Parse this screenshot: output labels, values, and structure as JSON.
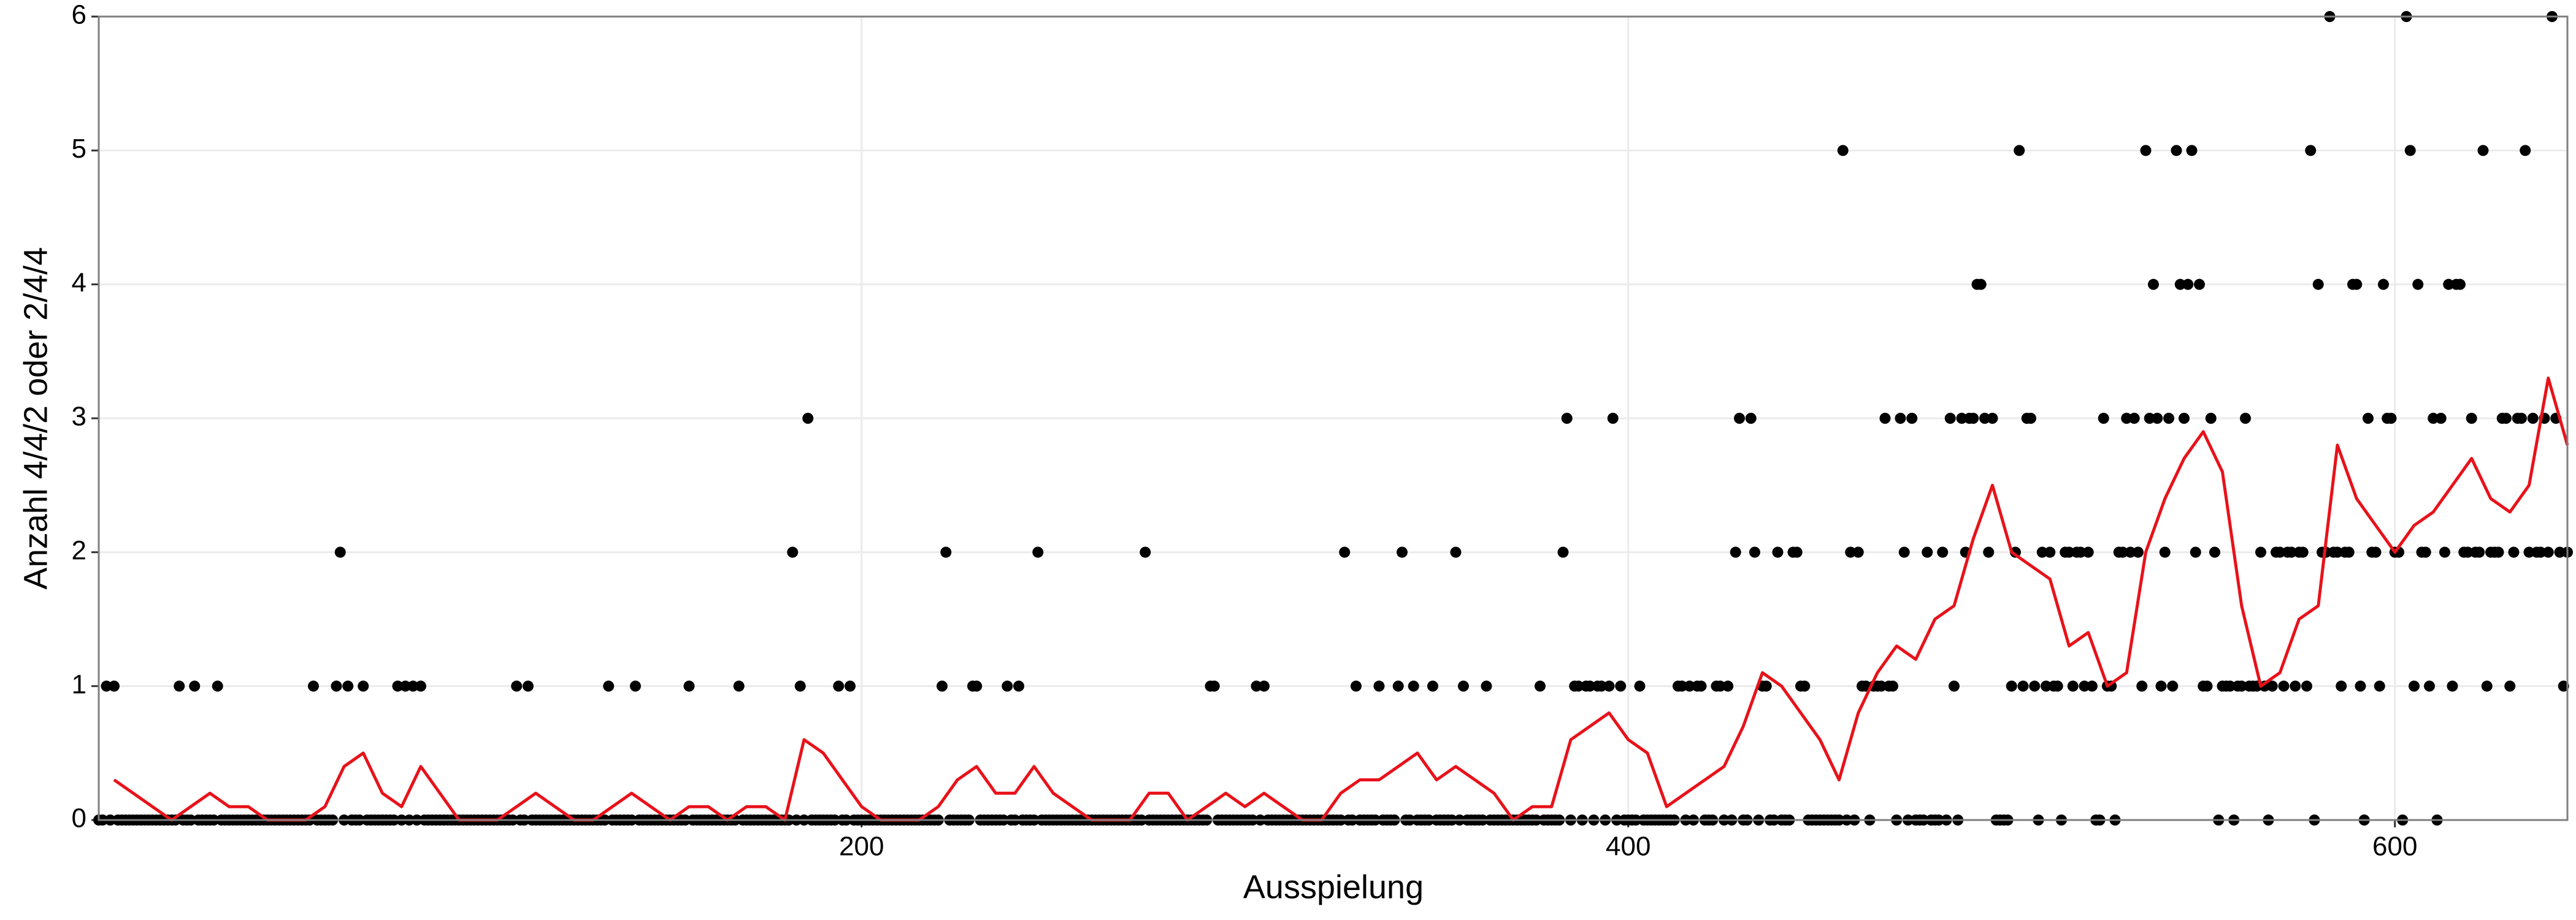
{
  "chart_data": {
    "type": "scatter",
    "x_label": "Ausspielung",
    "y_label": "Anzahl 4/4/2 oder 2/4/4",
    "xlim": [
      1,
      645
    ],
    "ylim": [
      0,
      6
    ],
    "xticks": [
      200,
      400,
      600
    ],
    "yticks": [
      0,
      1,
      2,
      3,
      4,
      5,
      6
    ],
    "grid": true,
    "x": [
      1,
      2,
      3,
      4,
      5,
      6,
      7,
      8,
      9,
      10,
      11,
      12,
      13,
      14,
      15,
      16,
      17,
      18,
      19,
      20,
      21,
      22,
      23,
      24,
      25,
      26,
      27,
      28,
      29,
      30,
      31,
      32,
      33,
      34,
      35,
      36,
      37,
      38,
      39,
      40,
      41,
      42,
      43,
      44,
      45,
      46,
      47,
      48,
      49,
      50,
      51,
      52,
      53,
      54,
      55,
      56,
      57,
      58,
      59,
      60,
      61,
      62,
      63,
      64,
      65,
      66,
      67,
      68,
      69,
      70,
      71,
      72,
      73,
      74,
      75,
      76,
      77,
      78,
      79,
      80,
      81,
      82,
      83,
      84,
      85,
      86,
      87,
      88,
      89,
      90,
      91,
      92,
      93,
      94,
      95,
      96,
      97,
      98,
      99,
      100,
      101,
      102,
      103,
      104,
      105,
      106,
      107,
      108,
      109,
      110,
      111,
      112,
      113,
      114,
      115,
      116,
      117,
      118,
      119,
      120,
      121,
      122,
      123,
      124,
      125,
      126,
      127,
      128,
      129,
      130,
      131,
      132,
      133,
      134,
      135,
      136,
      137,
      138,
      139,
      140,
      141,
      142,
      143,
      144,
      145,
      146,
      147,
      148,
      149,
      150,
      151,
      152,
      153,
      154,
      155,
      156,
      157,
      158,
      159,
      160,
      161,
      162,
      163,
      164,
      165,
      166,
      167,
      168,
      169,
      170,
      171,
      172,
      173,
      174,
      175,
      176,
      177,
      178,
      179,
      180,
      181,
      182,
      183,
      184,
      185,
      186,
      187,
      188,
      189,
      190,
      191,
      192,
      193,
      194,
      195,
      196,
      197,
      198,
      199,
      200,
      201,
      202,
      203,
      204,
      205,
      206,
      207,
      208,
      209,
      210,
      211,
      212,
      213,
      214,
      215,
      216,
      217,
      218,
      219,
      220,
      221,
      222,
      223,
      224,
      225,
      226,
      227,
      228,
      229,
      230,
      231,
      232,
      233,
      234,
      235,
      236,
      237,
      238,
      239,
      240,
      241,
      242,
      243,
      244,
      245,
      246,
      247,
      248,
      249,
      250,
      251,
      252,
      253,
      254,
      255,
      256,
      257,
      258,
      259,
      260,
      261,
      262,
      263,
      264,
      265,
      266,
      267,
      268,
      269,
      270,
      271,
      272,
      273,
      274,
      275,
      276,
      277,
      278,
      279,
      280,
      281,
      282,
      283,
      284,
      285,
      286,
      287,
      288,
      289,
      290,
      291,
      292,
      293,
      294,
      295,
      296,
      297,
      298,
      299,
      300,
      301,
      302,
      303,
      304,
      305,
      306,
      307,
      308,
      309,
      310,
      311,
      312,
      313,
      314,
      315,
      316,
      317,
      318,
      319,
      320,
      321,
      322,
      323,
      324,
      325,
      326,
      327,
      328,
      329,
      330,
      331,
      332,
      333,
      334,
      335,
      336,
      337,
      338,
      339,
      340,
      341,
      342,
      343,
      344,
      345,
      346,
      347,
      348,
      349,
      350,
      351,
      352,
      353,
      354,
      355,
      356,
      357,
      358,
      359,
      360,
      361,
      362,
      363,
      364,
      365,
      366,
      367,
      368,
      369,
      370,
      371,
      372,
      373,
      374,
      375,
      376,
      377,
      378,
      379,
      380,
      381,
      382,
      383,
      384,
      385,
      386,
      387,
      388,
      389,
      390,
      391,
      392,
      393,
      394,
      395,
      396,
      397,
      398,
      399,
      400,
      401,
      402,
      403,
      404,
      405,
      406,
      407,
      408,
      409,
      410,
      411,
      412,
      413,
      414,
      415,
      416,
      417,
      418,
      419,
      420,
      421,
      422,
      423,
      424,
      425,
      426,
      427,
      428,
      429,
      430,
      431,
      432,
      433,
      434,
      435,
      436,
      437,
      438,
      439,
      440,
      441,
      442,
      443,
      444,
      445,
      446,
      447,
      448,
      449,
      450,
      451,
      452,
      453,
      454,
      455,
      456,
      457,
      458,
      459,
      460,
      461,
      462,
      463,
      464,
      465,
      466,
      467,
      468,
      469,
      470,
      471,
      472,
      473,
      474,
      475,
      476,
      477,
      478,
      479,
      480,
      481,
      482,
      483,
      484,
      485,
      486,
      487,
      488,
      489,
      490,
      491,
      492,
      493,
      494,
      495,
      496,
      497,
      498,
      499,
      500,
      501,
      502,
      503,
      504,
      505,
      506,
      507,
      508,
      509,
      510,
      511,
      512,
      513,
      514,
      515,
      516,
      517,
      518,
      519,
      520,
      521,
      522,
      523,
      524,
      525,
      526,
      527,
      528,
      529,
      530,
      531,
      532,
      533,
      534,
      535,
      536,
      537,
      538,
      539,
      540,
      541,
      542,
      543,
      544,
      545,
      546,
      547,
      548,
      549,
      550,
      551,
      552,
      553,
      554,
      555,
      556,
      557,
      558,
      559,
      560,
      561,
      562,
      563,
      564,
      565,
      566,
      567,
      568,
      569,
      570,
      571,
      572,
      573,
      574,
      575,
      576,
      577,
      578,
      579,
      580,
      581,
      582,
      583,
      584,
      585,
      586,
      587,
      588,
      589,
      590,
      591,
      592,
      593,
      594,
      595,
      596,
      597,
      598,
      599,
      600,
      601,
      602,
      603,
      604,
      605,
      606,
      607,
      608,
      609,
      610,
      611,
      612,
      613,
      614,
      615,
      616,
      617,
      618,
      619,
      620,
      621,
      622,
      623,
      624,
      625,
      626,
      627,
      628,
      629,
      630,
      631,
      632,
      633,
      634,
      635,
      636,
      637,
      638,
      639,
      640,
      641,
      642,
      643,
      644,
      645
    ],
    "series": [
      {
        "type": "scatter",
        "color": "#000000",
        "values": [
          0,
          0,
          1,
          0,
          1,
          0,
          0,
          0,
          0,
          0,
          0,
          0,
          0,
          0,
          0,
          0,
          0,
          0,
          0,
          0,
          0,
          1,
          0,
          0,
          0,
          1,
          0,
          0,
          0,
          0,
          0,
          1,
          0,
          0,
          0,
          0,
          0,
          0,
          0,
          0,
          0,
          0,
          0,
          0,
          0,
          0,
          0,
          0,
          0,
          0,
          0,
          0,
          0,
          0,
          0,
          0,
          1,
          0,
          0,
          0,
          0,
          0,
          1,
          2,
          0,
          1,
          0,
          0,
          0,
          1,
          0,
          0,
          0,
          0,
          0,
          0,
          0,
          0,
          1,
          0,
          1,
          0,
          1,
          0,
          1,
          0,
          0,
          0,
          0,
          0,
          0,
          0,
          0,
          0,
          0,
          0,
          0,
          0,
          0,
          0,
          0,
          0,
          0,
          0,
          0,
          0,
          0,
          0,
          0,
          1,
          0,
          0,
          1,
          0,
          0,
          0,
          0,
          0,
          0,
          0,
          0,
          0,
          0,
          0,
          0,
          0,
          0,
          0,
          0,
          0,
          0,
          0,
          0,
          1,
          0,
          0,
          0,
          0,
          0,
          0,
          1,
          0,
          0,
          0,
          0,
          0,
          0,
          0,
          0,
          0,
          0,
          0,
          0,
          0,
          1,
          0,
          0,
          0,
          0,
          0,
          0,
          0,
          0,
          0,
          0,
          0,
          0,
          1,
          0,
          0,
          0,
          0,
          0,
          0,
          0,
          0,
          0,
          0,
          0,
          0,
          0,
          2,
          0,
          1,
          0,
          3,
          0,
          0,
          0,
          0,
          0,
          0,
          0,
          1,
          0,
          0,
          1,
          0,
          0,
          0,
          0,
          0,
          0,
          0,
          0,
          0,
          0,
          0,
          0,
          0,
          0,
          0,
          0,
          0,
          0,
          0,
          0,
          0,
          0,
          0,
          1,
          2,
          0,
          0,
          0,
          0,
          0,
          0,
          1,
          1,
          0,
          0,
          0,
          0,
          0,
          0,
          0,
          1,
          0,
          0,
          1,
          0,
          0,
          0,
          0,
          2,
          0,
          0,
          0,
          0,
          0,
          0,
          0,
          0,
          0,
          0,
          0,
          0,
          0,
          0,
          0,
          0,
          0,
          0,
          0,
          0,
          0,
          0,
          0,
          0,
          0,
          0,
          0,
          2,
          0,
          0,
          0,
          0,
          0,
          0,
          0,
          0,
          0,
          0,
          0,
          0,
          0,
          0,
          0,
          0,
          1,
          1,
          0,
          0,
          0,
          0,
          0,
          0,
          0,
          0,
          0,
          0,
          1,
          0,
          1,
          0,
          0,
          0,
          0,
          0,
          0,
          0,
          0,
          0,
          0,
          0,
          0,
          0,
          0,
          0,
          0,
          0,
          0,
          0,
          0,
          2,
          0,
          0,
          1,
          0,
          0,
          0,
          0,
          0,
          1,
          0,
          0,
          0,
          0,
          1,
          2,
          0,
          0,
          1,
          0,
          0,
          0,
          0,
          1,
          0,
          0,
          0,
          0,
          0,
          2,
          0,
          1,
          0,
          0,
          0,
          0,
          0,
          1,
          0,
          0,
          0,
          0,
          0,
          0,
          0,
          0,
          0,
          0,
          0,
          0,
          0,
          1,
          0,
          0,
          0,
          0,
          0,
          2,
          3,
          0,
          1,
          1,
          0,
          1,
          1,
          0,
          1,
          1,
          0,
          1,
          3,
          0,
          1,
          0,
          0,
          0,
          0,
          1,
          0,
          0,
          0,
          0,
          0,
          0,
          0,
          0,
          0,
          1,
          1,
          0,
          1,
          0,
          1,
          1,
          0,
          0,
          0,
          1,
          1,
          0,
          1,
          0,
          2,
          3,
          0,
          0,
          3,
          2,
          0,
          1,
          1,
          0,
          0,
          2,
          0,
          0,
          0,
          2,
          2,
          1,
          1,
          0,
          0,
          0,
          0,
          0,
          0,
          0,
          0,
          0,
          5,
          0,
          2,
          0,
          2,
          1,
          1,
          0,
          1,
          1,
          1,
          3,
          1,
          1,
          0,
          3,
          2,
          0,
          3,
          0,
          0,
          0,
          2,
          0,
          0,
          0,
          2,
          0,
          3,
          1,
          0,
          3,
          2,
          3,
          3,
          4,
          4,
          3,
          2,
          3,
          0,
          0,
          0,
          0,
          1,
          2,
          5,
          1,
          3,
          3,
          1,
          0,
          2,
          1,
          2,
          1,
          1,
          0,
          2,
          2,
          1,
          2,
          2,
          1,
          2,
          1,
          0,
          0,
          3,
          1,
          1,
          0,
          2,
          2,
          3,
          2,
          3,
          2,
          1,
          5,
          3,
          4,
          3,
          1,
          2,
          3,
          1,
          5,
          4,
          3,
          4,
          5,
          2,
          4,
          1,
          1,
          3,
          2,
          0,
          1,
          1,
          1,
          0,
          1,
          1,
          3,
          1,
          1,
          1,
          2,
          1,
          0,
          1,
          2,
          2,
          1,
          2,
          2,
          1,
          2,
          2,
          1,
          5,
          0,
          4,
          2,
          2,
          6,
          2,
          2,
          1,
          2,
          2,
          4,
          4,
          1,
          0,
          3,
          2,
          2,
          1,
          4,
          3,
          3,
          2,
          2,
          0,
          6,
          5,
          1,
          4,
          2,
          2,
          1,
          3,
          0,
          3,
          2,
          4,
          1,
          4,
          4,
          2,
          2,
          3,
          2,
          2,
          5,
          1,
          2,
          2,
          2,
          3,
          3,
          1,
          2,
          3,
          3,
          5,
          2,
          3,
          2,
          2,
          3,
          2,
          6,
          3,
          2,
          1,
          2
        ]
      },
      {
        "type": "line",
        "color": "#e8121a",
        "x": [
          5,
          10,
          15,
          20,
          25,
          30,
          35,
          40,
          45,
          50,
          55,
          60,
          65,
          70,
          75,
          80,
          85,
          90,
          95,
          100,
          105,
          110,
          115,
          120,
          125,
          130,
          135,
          140,
          145,
          150,
          155,
          160,
          165,
          170,
          175,
          180,
          185,
          190,
          195,
          200,
          205,
          210,
          215,
          220,
          225,
          230,
          235,
          240,
          245,
          250,
          255,
          260,
          265,
          270,
          275,
          280,
          285,
          290,
          295,
          300,
          305,
          310,
          315,
          320,
          325,
          330,
          335,
          340,
          345,
          350,
          355,
          360,
          365,
          370,
          375,
          380,
          385,
          390,
          395,
          400,
          405,
          410,
          415,
          420,
          425,
          430,
          435,
          440,
          445,
          450,
          455,
          460,
          465,
          470,
          475,
          480,
          485,
          490,
          495,
          500,
          505,
          510,
          515,
          520,
          525,
          530,
          535,
          540,
          545,
          550,
          555,
          560,
          565,
          570,
          575,
          580,
          585,
          590,
          595,
          600,
          605,
          610,
          615,
          620,
          625,
          630,
          635,
          640,
          645
        ],
        "values": [
          0.3,
          0.2,
          0.1,
          0,
          0.1,
          0.2,
          0.1,
          0.1,
          0,
          0,
          0,
          0.1,
          0.4,
          0.5,
          0.2,
          0.1,
          0.4,
          0.2,
          0,
          0,
          0,
          0.1,
          0.2,
          0.1,
          0,
          0,
          0.1,
          0.2,
          0.1,
          0,
          0.1,
          0.1,
          0,
          0.1,
          0.1,
          0,
          0.6,
          0.5,
          0.3,
          0.1,
          0,
          0,
          0,
          0.1,
          0.3,
          0.4,
          0.2,
          0.2,
          0.4,
          0.2,
          0.1,
          0,
          0,
          0,
          0.2,
          0.2,
          0,
          0.1,
          0.2,
          0.1,
          0.2,
          0.1,
          0,
          0,
          0.2,
          0.3,
          0.3,
          0.4,
          0.5,
          0.3,
          0.4,
          0.3,
          0.2,
          0,
          0.1,
          0.1,
          0.6,
          0.7,
          0.8,
          0.6,
          0.5,
          0.1,
          0.2,
          0.3,
          0.4,
          0.7,
          1.1,
          1.0,
          0.8,
          0.6,
          0.3,
          0.8,
          1.1,
          1.3,
          1.2,
          1.5,
          1.6,
          2.1,
          2.5,
          2.0,
          1.9,
          1.8,
          1.3,
          1.4,
          1.0,
          1.1,
          2.0,
          2.4,
          2.7,
          2.9,
          2.6,
          1.6,
          1.0,
          1.1,
          1.5,
          1.6,
          2.8,
          2.4,
          2.2,
          2.0,
          2.2,
          2.3,
          2.5,
          2.7,
          2.4,
          2.3,
          2.5,
          3.3,
          2.8
        ]
      }
    ]
  }
}
